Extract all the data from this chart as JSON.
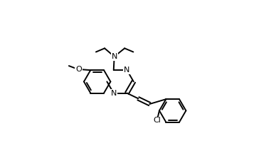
{
  "background_color": "#ffffff",
  "lw": 1.4,
  "fs": 8.0,
  "figsize": [
    3.88,
    2.12
  ],
  "dpi": 100,
  "r": 0.08,
  "bx": 0.255,
  "by": 0.49,
  "xlim": [
    0.0,
    1.0
  ],
  "ylim": [
    0.08,
    0.98
  ]
}
